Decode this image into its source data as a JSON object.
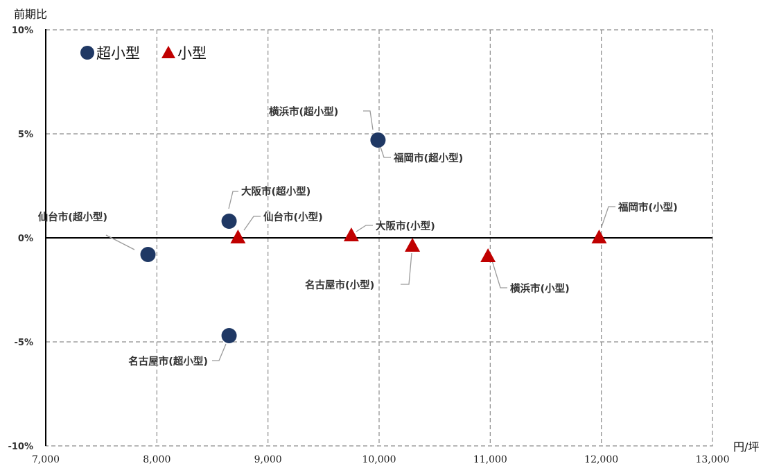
{
  "chart_data": {
    "type": "scatter",
    "ylabel": "前期比",
    "xlabel": "円/坪",
    "xlim": [
      7000,
      13000
    ],
    "ylim": [
      -10,
      10
    ],
    "x_ticks": [
      {
        "value": 7000,
        "label": "7,000"
      },
      {
        "value": 8000,
        "label": "8,000"
      },
      {
        "value": 9000,
        "label": "9,000"
      },
      {
        "value": 10000,
        "label": "10,000"
      },
      {
        "value": 11000,
        "label": "11,000"
      },
      {
        "value": 12000,
        "label": "12,000"
      },
      {
        "value": 13000,
        "label": "13,000"
      }
    ],
    "y_ticks": [
      {
        "value": 10,
        "label": "10%"
      },
      {
        "value": 5,
        "label": "5%"
      },
      {
        "value": 0,
        "label": "0%"
      },
      {
        "value": -5,
        "label": "-5%"
      },
      {
        "value": -10,
        "label": "-10%"
      }
    ],
    "grid": true,
    "legend_position": "top-left",
    "series": [
      {
        "name": "超小型",
        "marker": "circle",
        "color": "#1f3864",
        "points": [
          {
            "label": "仙台市(超小型)",
            "x": 7920,
            "y": -0.8
          },
          {
            "label": "大阪市(超小型)",
            "x": 8650,
            "y": 0.8
          },
          {
            "label": "名古屋市(超小型)",
            "x": 8650,
            "y": -4.7
          },
          {
            "label": "横浜市(超小型)",
            "x": 9990,
            "y": 4.7
          },
          {
            "label": "福岡市(超小型)",
            "x": 9990,
            "y": 4.7
          }
        ]
      },
      {
        "name": "小型",
        "marker": "triangle",
        "color": "#c00000",
        "points": [
          {
            "label": "仙台市(小型)",
            "x": 8730,
            "y": 0.0
          },
          {
            "label": "大阪市(小型)",
            "x": 9750,
            "y": 0.1
          },
          {
            "label": "名古屋市(小型)",
            "x": 10300,
            "y": -0.4
          },
          {
            "label": "横浜市(小型)",
            "x": 10980,
            "y": -0.9
          },
          {
            "label": "福岡市(小型)",
            "x": 11980,
            "y": 0.0
          }
        ]
      }
    ]
  }
}
